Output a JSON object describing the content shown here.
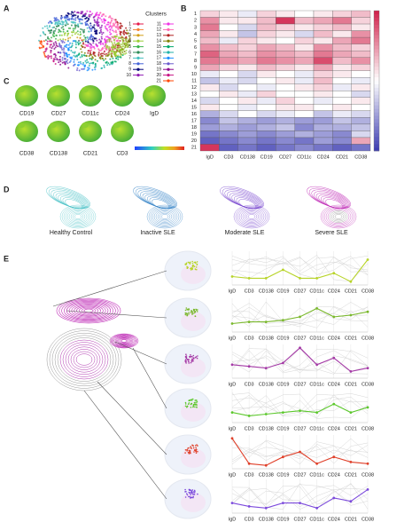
{
  "panels": {
    "A": {
      "label": "A",
      "legend_title": "Clusters",
      "legend": [
        {
          "label": "1",
          "color": "#e6194b"
        },
        {
          "label": "2",
          "color": "#f58231"
        },
        {
          "label": "3",
          "color": "#d4a017"
        },
        {
          "label": "4",
          "color": "#9acd32"
        },
        {
          "label": "5",
          "color": "#3cb44b"
        },
        {
          "label": "6",
          "color": "#2e8b57"
        },
        {
          "label": "7",
          "color": "#46c0c0"
        },
        {
          "label": "8",
          "color": "#4363d8"
        },
        {
          "label": "9",
          "color": "#000075"
        },
        {
          "label": "10",
          "color": "#911eb4"
        },
        {
          "label": "11",
          "color": "#f032e6"
        },
        {
          "label": "12",
          "color": "#ff69b4"
        },
        {
          "label": "13",
          "color": "#b22222"
        },
        {
          "label": "14",
          "color": "#808000"
        },
        {
          "label": "15",
          "color": "#00a86b"
        },
        {
          "label": "16",
          "color": "#20b2aa"
        },
        {
          "label": "17",
          "color": "#1e90ff"
        },
        {
          "label": "18",
          "color": "#6a5acd"
        },
        {
          "label": "19",
          "color": "#8b008b"
        },
        {
          "label": "20",
          "color": "#c71585"
        },
        {
          "label": "21",
          "color": "#ff4500"
        }
      ]
    },
    "B": {
      "label": "B"
    },
    "C": {
      "label": "C",
      "markers": [
        "CD19",
        "CD27",
        "CD11c",
        "CD24",
        "IgD",
        "CD38",
        "CD138",
        "CD21",
        "CD3"
      ]
    },
    "D": {
      "label": "D",
      "groups": [
        "Healthy Control",
        "Inactive SLE",
        "Moderate SLE",
        "Severe SLE"
      ],
      "colors": [
        "#4fc3c8",
        "#3a86c8",
        "#7a4ad0",
        "#c030b8"
      ]
    },
    "E": {
      "label": "E"
    }
  },
  "chart_data": [
    {
      "type": "heatmap",
      "rows": [
        "1",
        "2",
        "3",
        "4",
        "5",
        "6",
        "7",
        "8",
        "9",
        "10",
        "11",
        "12",
        "13",
        "14",
        "15",
        "16",
        "17",
        "18",
        "19",
        "20",
        "21"
      ],
      "columns": [
        "IgD",
        "CD3",
        "CD138",
        "CD19",
        "CD27",
        "CD11c",
        "CD24",
        "CD21",
        "CD38"
      ],
      "zlim": [
        -1,
        1
      ],
      "low_color": "#3a3ab0",
      "high_color": "#d0204a",
      "values": [
        [
          0.2,
          0.1,
          -0.1,
          0.2,
          0.1,
          0,
          0.1,
          0.2,
          0.3
        ],
        [
          0.5,
          0.1,
          0.1,
          0.3,
          0.9,
          0.3,
          0.4,
          0.6,
          0.2
        ],
        [
          0.6,
          0,
          -0.2,
          0.3,
          0.2,
          0.1,
          0.2,
          0.3,
          0.1
        ],
        [
          0.4,
          0.1,
          -0.3,
          0.2,
          0.1,
          -0.2,
          0.3,
          0.1,
          0.5
        ],
        [
          0.3,
          -0.1,
          0.2,
          0.1,
          0,
          0.2,
          0.1,
          0.4,
          0.6
        ],
        [
          0.5,
          0.3,
          0.2,
          0.4,
          0.3,
          0.1,
          0.5,
          0.3,
          0.2
        ],
        [
          0.7,
          0.4,
          0.3,
          0.5,
          0.4,
          0.3,
          0.6,
          0.4,
          0.3
        ],
        [
          0.6,
          0.5,
          0.4,
          0.6,
          0.5,
          0.4,
          0.8,
          0.3,
          0.5
        ],
        [
          0.4,
          0.2,
          0.1,
          0.3,
          0.2,
          0.1,
          0.4,
          0.1,
          0.2
        ],
        [
          -0.1,
          0,
          -0.2,
          0.1,
          0,
          -0.1,
          0.2,
          0.1,
          0
        ],
        [
          -0.3,
          -0.1,
          -0.2,
          0,
          0.1,
          -0.1,
          0.3,
          0,
          -0.1
        ],
        [
          0.1,
          -0.2,
          0,
          -0.1,
          0,
          0.1,
          0.2,
          -0.1,
          0.1
        ],
        [
          0,
          0.1,
          -0.1,
          0.2,
          0,
          0,
          0.1,
          0,
          -0.2
        ],
        [
          -0.2,
          0,
          0.1,
          -0.1,
          0.2,
          0,
          -0.1,
          0,
          0.1
        ],
        [
          0.1,
          0,
          -0.1,
          0,
          0.1,
          0.1,
          0,
          0.1,
          0
        ],
        [
          -0.4,
          -0.2,
          0,
          -0.2,
          -0.1,
          0,
          -0.3,
          -0.1,
          -0.2
        ],
        [
          -0.6,
          -0.3,
          -0.4,
          -0.5,
          -0.4,
          -0.5,
          -0.5,
          -0.3,
          -0.4
        ],
        [
          -0.5,
          -0.4,
          -0.5,
          -0.4,
          -0.3,
          -0.6,
          -0.4,
          -0.4,
          -0.3
        ],
        [
          -0.7,
          -0.6,
          -0.5,
          -0.6,
          -0.5,
          -0.4,
          -0.5,
          -0.6,
          -0.2
        ],
        [
          -0.8,
          -0.7,
          -0.6,
          -0.7,
          -0.6,
          -0.7,
          -0.5,
          -0.6,
          0.4
        ],
        [
          0.9,
          -0.8,
          -0.7,
          -0.8,
          -0.7,
          -0.6,
          -0.7,
          -0.8,
          -0.7
        ]
      ]
    },
    {
      "type": "line",
      "categories": [
        "IgD",
        "CD3",
        "CD138",
        "CD19",
        "CD27",
        "CD11c",
        "CD24",
        "CD21",
        "CD38"
      ],
      "ylim": [
        0,
        1
      ],
      "series": [
        {
          "color": "#b8d42a",
          "values": [
            0.25,
            0.2,
            0.2,
            0.45,
            0.2,
            0.2,
            0.35,
            0.1,
            0.75
          ]
        }
      ]
    },
    {
      "type": "line",
      "categories": [
        "IgD",
        "CD3",
        "CD138",
        "CD19",
        "CD27",
        "CD11c",
        "CD24",
        "CD21",
        "CD38"
      ],
      "ylim": [
        0,
        1
      ],
      "series": [
        {
          "color": "#7ab82c",
          "values": [
            0.25,
            0.3,
            0.3,
            0.35,
            0.45,
            0.7,
            0.45,
            0.5,
            0.6
          ]
        }
      ]
    },
    {
      "type": "line",
      "categories": [
        "IgD",
        "CD3",
        "CD138",
        "CD19",
        "CD27",
        "CD11c",
        "CD24",
        "CD21",
        "CD38"
      ],
      "ylim": [
        0,
        1
      ],
      "series": [
        {
          "color": "#a43aa6",
          "values": [
            0.4,
            0.35,
            0.3,
            0.45,
            0.9,
            0.4,
            0.6,
            0.2,
            0.3
          ]
        }
      ]
    },
    {
      "type": "line",
      "categories": [
        "IgD",
        "CD3",
        "CD138",
        "CD19",
        "CD27",
        "CD11c",
        "CD24",
        "CD21",
        "CD38"
      ],
      "ylim": [
        0,
        1
      ],
      "series": [
        {
          "color": "#5cc82c",
          "values": [
            0.3,
            0.2,
            0.25,
            0.3,
            0.35,
            0.3,
            0.55,
            0.3,
            0.45
          ]
        }
      ]
    },
    {
      "type": "line",
      "categories": [
        "IgD",
        "CD3",
        "CD138",
        "CD19",
        "CD27",
        "CD11c",
        "CD24",
        "CD21",
        "CD38"
      ],
      "ylim": [
        0,
        1
      ],
      "series": [
        {
          "color": "#e0402a",
          "values": [
            0.9,
            0.15,
            0.1,
            0.35,
            0.5,
            0.15,
            0.35,
            0.2,
            0.15
          ]
        }
      ]
    },
    {
      "type": "line",
      "categories": [
        "IgD",
        "CD3",
        "CD138",
        "CD19",
        "CD27",
        "CD11c",
        "CD24",
        "CD21",
        "CD38"
      ],
      "ylim": [
        0,
        1
      ],
      "series": [
        {
          "color": "#7c4adc",
          "values": [
            0.3,
            0.2,
            0.15,
            0.3,
            0.3,
            0.15,
            0.45,
            0.35,
            0.7
          ]
        }
      ]
    }
  ]
}
